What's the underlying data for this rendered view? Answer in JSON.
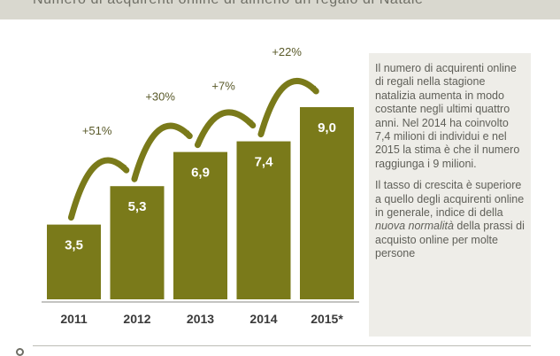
{
  "header": {
    "title": "Numero di acquirenti online di almeno un regalo di Natale"
  },
  "chart_data": {
    "type": "bar",
    "title": "Numero di acquirenti online di almeno un regalo di Natale",
    "categories": [
      "2011",
      "2012",
      "2013",
      "2014",
      "2015*"
    ],
    "values": [
      3.5,
      5.3,
      6.9,
      7.4,
      9.0
    ],
    "value_labels": [
      "3,5",
      "5,3",
      "6,9",
      "7,4",
      "9,0"
    ],
    "growth_labels": [
      "+51%",
      "+30%",
      "+7%",
      "+22%"
    ],
    "ylim": [
      0,
      9.0
    ],
    "grid": false,
    "legend": "none",
    "bar_color": "#7a7a1a",
    "arrow_color": "#7a7a1a"
  },
  "sidebox": {
    "paragraph1": "Il numero di acquirenti online di regali nella stagione natalizia aumenta in modo costante negli ultimi quattro anni. Nel 2014 ha coinvolto 7,4 milioni di individui e nel 2015 la stima è che il numero raggiunga i 9 milioni.",
    "paragraph2_before": "Il tasso di crescita è superiore a quello degli acquirenti online in generale, indice di della ",
    "paragraph2_emphasis": "nuova normalità",
    "paragraph2_after": " della prassi di acquisto online per molte persone"
  },
  "colors": {
    "accent": "#7a7a1a",
    "title_strip": "#d9d8cf",
    "sidebox_bg": "#eeede8"
  }
}
